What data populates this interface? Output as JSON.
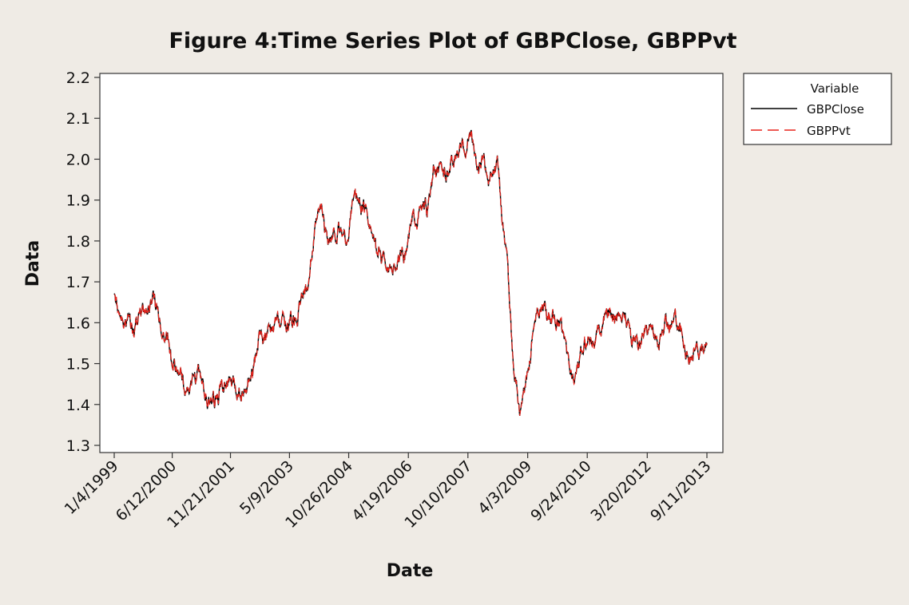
{
  "chart_data": {
    "type": "line",
    "title": "Figure 4:Time Series Plot of GBPClose, GBPPvt",
    "xlabel": "Date",
    "ylabel": "Data",
    "ylim": [
      1.3,
      2.2
    ],
    "yticks": [
      "1.3",
      "1.4",
      "1.5",
      "1.6",
      "1.7",
      "1.8",
      "1.9",
      "2.0",
      "2.1",
      "2.2"
    ],
    "xlim": [
      "1999-01-04",
      "2013-09-11"
    ],
    "xticks": [
      {
        "date": "1999-01-04",
        "label": "1/4/1999"
      },
      {
        "date": "2000-06-12",
        "label": "6/12/2000"
      },
      {
        "date": "2001-11-21",
        "label": "11/21/2001"
      },
      {
        "date": "2003-05-09",
        "label": "5/9/2003"
      },
      {
        "date": "2004-10-26",
        "label": "10/26/2004"
      },
      {
        "date": "2006-04-19",
        "label": "4/19/2006"
      },
      {
        "date": "2007-10-10",
        "label": "10/10/2007"
      },
      {
        "date": "2009-04-03",
        "label": "4/3/2009"
      },
      {
        "date": "2010-09-24",
        "label": "9/24/2010"
      },
      {
        "date": "2012-03-20",
        "label": "3/20/2012"
      },
      {
        "date": "2013-09-11",
        "label": "9/11/2013"
      }
    ],
    "legend": {
      "title": "Variable",
      "position": "right"
    },
    "grid": false,
    "series": [
      {
        "name": "GBPClose",
        "color": "#000000",
        "style": "solid",
        "x": [
          "1999-01-04",
          "1999-04-01",
          "1999-07-01",
          "1999-10-01",
          "2000-01-03",
          "2000-03-01",
          "2000-05-01",
          "2000-06-12",
          "2000-08-01",
          "2000-10-02",
          "2000-12-01",
          "2001-02-01",
          "2001-04-02",
          "2001-06-01",
          "2001-08-01",
          "2001-10-01",
          "2001-11-21",
          "2002-02-01",
          "2002-04-01",
          "2002-06-03",
          "2002-08-01",
          "2002-10-01",
          "2002-12-02",
          "2003-02-03",
          "2003-05-09",
          "2003-07-01",
          "2003-09-01",
          "2003-11-03",
          "2004-01-02",
          "2004-02-18",
          "2004-04-01",
          "2004-06-01",
          "2004-08-02",
          "2004-10-26",
          "2004-12-01",
          "2005-01-04",
          "2005-03-01",
          "2005-05-02",
          "2005-07-01",
          "2005-09-01",
          "2005-11-01",
          "2006-01-03",
          "2006-03-01",
          "2006-04-19",
          "2006-06-01",
          "2006-08-01",
          "2006-10-02",
          "2006-12-01",
          "2007-02-01",
          "2007-04-02",
          "2007-06-01",
          "2007-08-01",
          "2007-10-10",
          "2007-11-08",
          "2008-01-02",
          "2008-03-03",
          "2008-05-01",
          "2008-07-01",
          "2008-08-15",
          "2008-10-01",
          "2008-11-20",
          "2009-01-02",
          "2009-01-23",
          "2009-03-01",
          "2009-04-03",
          "2009-06-01",
          "2009-08-03",
          "2009-10-01",
          "2009-12-01",
          "2010-02-01",
          "2010-04-01",
          "2010-05-20",
          "2010-07-01",
          "2010-09-24",
          "2010-11-01",
          "2011-01-03",
          "2011-03-01",
          "2011-05-02",
          "2011-07-01",
          "2011-09-01",
          "2011-11-01",
          "2012-01-03",
          "2012-03-20",
          "2012-05-01",
          "2012-07-02",
          "2012-09-03",
          "2012-11-01",
          "2013-01-02",
          "2013-02-15",
          "2013-04-01",
          "2013-06-03",
          "2013-07-09",
          "2013-08-01",
          "2013-09-11"
        ],
        "values": [
          1.66,
          1.62,
          1.58,
          1.63,
          1.65,
          1.6,
          1.56,
          1.5,
          1.5,
          1.45,
          1.44,
          1.47,
          1.43,
          1.41,
          1.42,
          1.46,
          1.44,
          1.43,
          1.42,
          1.48,
          1.55,
          1.56,
          1.57,
          1.61,
          1.6,
          1.62,
          1.65,
          1.72,
          1.82,
          1.87,
          1.82,
          1.8,
          1.82,
          1.8,
          1.92,
          1.9,
          1.88,
          1.86,
          1.77,
          1.76,
          1.73,
          1.75,
          1.74,
          1.8,
          1.85,
          1.88,
          1.87,
          1.96,
          1.96,
          1.97,
          1.99,
          2.02,
          2.04,
          2.08,
          1.98,
          1.99,
          1.96,
          1.98,
          1.86,
          1.76,
          1.52,
          1.45,
          1.38,
          1.42,
          1.47,
          1.62,
          1.65,
          1.61,
          1.62,
          1.58,
          1.5,
          1.45,
          1.5,
          1.56,
          1.58,
          1.57,
          1.61,
          1.64,
          1.61,
          1.62,
          1.57,
          1.55,
          1.59,
          1.6,
          1.55,
          1.59,
          1.6,
          1.61,
          1.55,
          1.52,
          1.53,
          1.51,
          1.53,
          1.58
        ]
      },
      {
        "name": "GBPPvt",
        "color": "#e8231c",
        "style": "dashed",
        "x": [
          "1999-01-04",
          "1999-04-01",
          "1999-07-01",
          "1999-10-01",
          "2000-01-03",
          "2000-03-01",
          "2000-05-01",
          "2000-06-12",
          "2000-08-01",
          "2000-10-02",
          "2000-12-01",
          "2001-02-01",
          "2001-04-02",
          "2001-06-01",
          "2001-08-01",
          "2001-10-01",
          "2001-11-21",
          "2002-02-01",
          "2002-04-01",
          "2002-06-03",
          "2002-08-01",
          "2002-10-01",
          "2002-12-02",
          "2003-02-03",
          "2003-05-09",
          "2003-07-01",
          "2003-09-01",
          "2003-11-03",
          "2004-01-02",
          "2004-02-18",
          "2004-04-01",
          "2004-06-01",
          "2004-08-02",
          "2004-10-26",
          "2004-12-01",
          "2005-01-04",
          "2005-03-01",
          "2005-05-02",
          "2005-07-01",
          "2005-09-01",
          "2005-11-01",
          "2006-01-03",
          "2006-03-01",
          "2006-04-19",
          "2006-06-01",
          "2006-08-01",
          "2006-10-02",
          "2006-12-01",
          "2007-02-01",
          "2007-04-02",
          "2007-06-01",
          "2007-08-01",
          "2007-10-10",
          "2007-11-08",
          "2008-01-02",
          "2008-03-03",
          "2008-05-01",
          "2008-07-01",
          "2008-08-15",
          "2008-10-01",
          "2008-11-20",
          "2009-01-02",
          "2009-01-23",
          "2009-03-01",
          "2009-04-03",
          "2009-06-01",
          "2009-08-03",
          "2009-10-01",
          "2009-12-01",
          "2010-02-01",
          "2010-04-01",
          "2010-05-20",
          "2010-07-01",
          "2010-09-24",
          "2010-11-01",
          "2011-01-03",
          "2011-03-01",
          "2011-05-02",
          "2011-07-01",
          "2011-09-01",
          "2011-11-01",
          "2012-01-03",
          "2012-03-20",
          "2012-05-01",
          "2012-07-02",
          "2012-09-03",
          "2012-11-01",
          "2013-01-02",
          "2013-02-15",
          "2013-04-01",
          "2013-06-03",
          "2013-07-09",
          "2013-08-01",
          "2013-09-11"
        ],
        "values": [
          1.66,
          1.62,
          1.58,
          1.63,
          1.65,
          1.6,
          1.56,
          1.5,
          1.5,
          1.45,
          1.44,
          1.47,
          1.43,
          1.41,
          1.42,
          1.46,
          1.44,
          1.43,
          1.42,
          1.48,
          1.55,
          1.56,
          1.57,
          1.61,
          1.6,
          1.62,
          1.65,
          1.72,
          1.82,
          1.87,
          1.82,
          1.8,
          1.82,
          1.8,
          1.92,
          1.9,
          1.88,
          1.86,
          1.77,
          1.76,
          1.73,
          1.75,
          1.74,
          1.8,
          1.85,
          1.88,
          1.87,
          1.96,
          1.96,
          1.97,
          1.99,
          2.02,
          2.04,
          2.08,
          1.98,
          1.99,
          1.96,
          1.98,
          1.86,
          1.76,
          1.52,
          1.45,
          1.38,
          1.42,
          1.47,
          1.62,
          1.65,
          1.61,
          1.62,
          1.58,
          1.5,
          1.45,
          1.5,
          1.56,
          1.58,
          1.57,
          1.61,
          1.64,
          1.61,
          1.62,
          1.57,
          1.55,
          1.59,
          1.6,
          1.55,
          1.59,
          1.6,
          1.61,
          1.55,
          1.52,
          1.53,
          1.51,
          1.53,
          1.58
        ]
      }
    ]
  }
}
